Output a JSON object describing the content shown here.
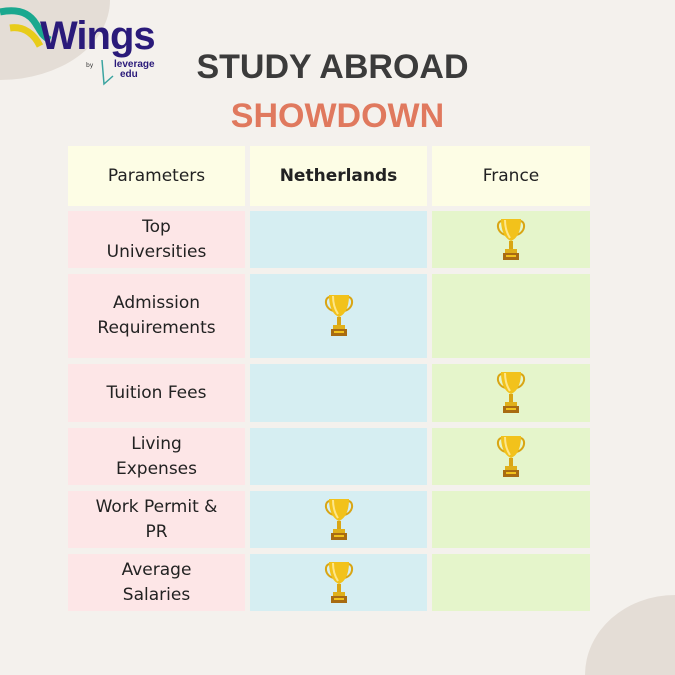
{
  "brand": {
    "name": "Wings",
    "by": "by",
    "partner_line1": "leverage",
    "partner_line2": "edu"
  },
  "title": {
    "line1": "STUDY ABROAD",
    "line2": "SHOWDOWN"
  },
  "colors": {
    "title": "#3b3b3b",
    "accent": "#e0795e",
    "brand": "#2a1a7a",
    "parameter_cell": "#fde6e7",
    "netherlands_cell": "#d6eef2",
    "france_cell": "#e5f5cb",
    "header_cell": "#fdfde5"
  },
  "table": {
    "headers": [
      "Parameters",
      "Netherlands",
      "France"
    ],
    "rows": [
      {
        "parameter": "Top Universities",
        "winner": "France"
      },
      {
        "parameter": "Admission Requirements",
        "winner": "Netherlands"
      },
      {
        "parameter": "Tuition Fees",
        "winner": "France"
      },
      {
        "parameter": "Living Expenses",
        "winner": "France"
      },
      {
        "parameter": "Work Permit & PR",
        "winner": "Netherlands"
      },
      {
        "parameter": "Average Salaries",
        "winner": "Netherlands"
      }
    ],
    "winner_icon": "trophy-icon"
  }
}
